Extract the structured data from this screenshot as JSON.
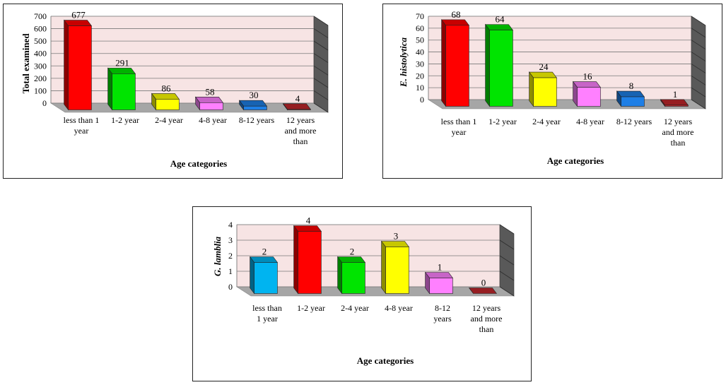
{
  "chart_data": [
    {
      "type": "bar",
      "ylabel": "Total examined",
      "xlabel": "Age categories",
      "categories": [
        "less than 1 year",
        "1-2 year",
        "2-4 year",
        "4-8 year",
        "8-12 years",
        "12 years and more than"
      ],
      "values": [
        677,
        291,
        86,
        58,
        30,
        4
      ],
      "ylim": [
        0,
        700
      ],
      "yticks": [
        0,
        100,
        200,
        300,
        400,
        500,
        600,
        700
      ],
      "colors": [
        "#ff0000",
        "#00e400",
        "#ffff00",
        "#ff80ff",
        "#1e7fe6",
        "#c0262c"
      ],
      "grid": true,
      "legend": "none"
    },
    {
      "type": "bar",
      "ylabel": "E. histolytica",
      "xlabel": "Age categories",
      "categories": [
        "less than 1 year",
        "1-2 year",
        "2-4 year",
        "4-8 year",
        "8-12 years",
        "12 years and more than"
      ],
      "values": [
        68,
        64,
        24,
        16,
        8,
        1
      ],
      "ylim": [
        0,
        70
      ],
      "yticks": [
        0,
        10,
        20,
        30,
        40,
        50,
        60,
        70
      ],
      "colors": [
        "#ff0000",
        "#00e400",
        "#ffff00",
        "#ff80ff",
        "#1e7fe6",
        "#c0262c"
      ],
      "grid": true,
      "legend": "none"
    },
    {
      "type": "bar",
      "ylabel": "G. lamblia",
      "xlabel": "Age categories",
      "categories": [
        "less than 1 year",
        "1-2 year",
        "2-4 year",
        "4-8 year",
        "8-12 years",
        "12 years and more than"
      ],
      "values": [
        2,
        4,
        2,
        3,
        1,
        0
      ],
      "ylim": [
        0,
        4
      ],
      "yticks": [
        0,
        1,
        2,
        3,
        4
      ],
      "colors": [
        "#00b4f0",
        "#ff0000",
        "#00e400",
        "#ffff00",
        "#ff80ff",
        "#c0262c"
      ],
      "grid": true,
      "legend": "none"
    }
  ]
}
